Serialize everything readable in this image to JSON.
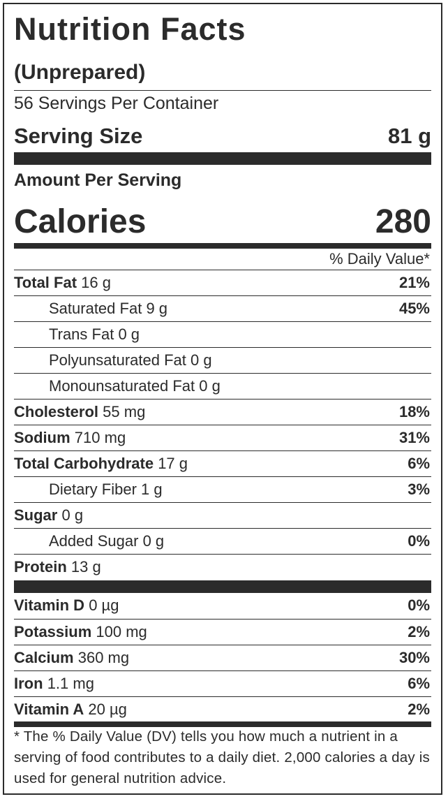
{
  "title": "Nutrition Facts",
  "subtitle": "(Unprepared)",
  "servings_per_container": "56 Servings Per Container",
  "serving_size": {
    "label": "Serving Size",
    "value": "81 g"
  },
  "amount_per_serving": "Amount Per Serving",
  "calories": {
    "label": "Calories",
    "value": "280"
  },
  "dv_header": "% Daily Value*",
  "nutrients": [
    {
      "name": "Total Fat",
      "amount": "16 g",
      "dv": "21%"
    },
    {
      "name": "Saturated Fat",
      "amount": "9 g",
      "dv": "45%"
    },
    {
      "name": "Trans Fat",
      "amount": "0 g",
      "dv": ""
    },
    {
      "name": "Polyunsaturated Fat",
      "amount": "0 g",
      "dv": ""
    },
    {
      "name": "Monounsaturated Fat",
      "amount": "0 g",
      "dv": ""
    },
    {
      "name": "Cholesterol",
      "amount": "55 mg",
      "dv": "18%"
    },
    {
      "name": "Sodium",
      "amount": "710 mg",
      "dv": "31%"
    },
    {
      "name": "Total Carbohydrate",
      "amount": "17 g",
      "dv": "6%"
    },
    {
      "name": "Dietary Fiber",
      "amount": "1 g",
      "dv": "3%"
    },
    {
      "name": "Sugar",
      "amount": "0 g",
      "dv": ""
    },
    {
      "name": "Added Sugar",
      "amount": "0 g",
      "dv": "0%"
    },
    {
      "name": "Protein",
      "amount": "13 g",
      "dv": ""
    }
  ],
  "vitamins": [
    {
      "name": "Vitamin D",
      "amount": "0 µg",
      "dv": "0%"
    },
    {
      "name": "Potassium",
      "amount": "100 mg",
      "dv": "2%"
    },
    {
      "name": "Calcium",
      "amount": "360 mg",
      "dv": "30%"
    },
    {
      "name": "Iron",
      "amount": "1.1 mg",
      "dv": "6%"
    },
    {
      "name": "Vitamin A",
      "amount": "20 µg",
      "dv": "2%"
    }
  ],
  "footnote": "* The % Daily Value (DV) tells you how much a nutrient in a serving of food contributes to a daily diet. 2,000 calories a day is used for general nutrition advice."
}
